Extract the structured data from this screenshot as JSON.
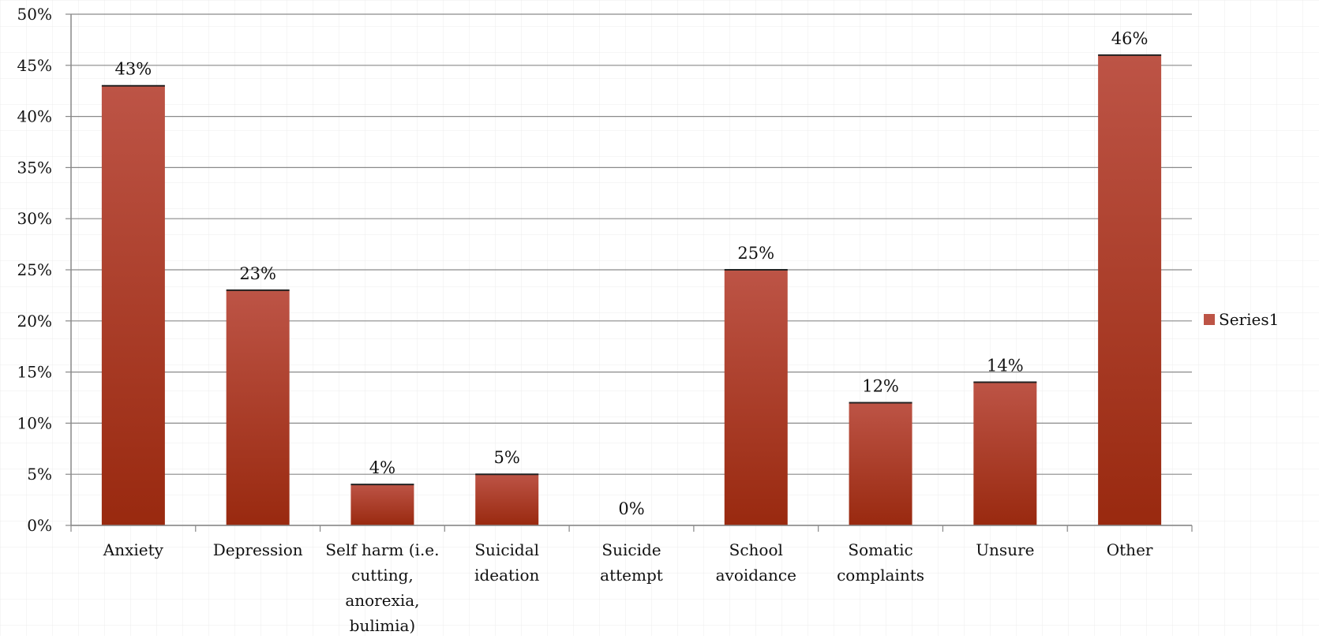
{
  "chart_data": {
    "type": "bar",
    "categories": [
      "Anxiety",
      "Depression",
      "Self harm (i.e. cutting, anorexia, bulimia)",
      "Suicidal ideation",
      "Suicide attempt",
      "School avoidance",
      "Somatic complaints",
      "Unsure",
      "Other"
    ],
    "category_lines": [
      [
        "Anxiety"
      ],
      [
        "Depression"
      ],
      [
        "Self harm (i.e.",
        "cutting,",
        "anorexia,",
        "bulimia)"
      ],
      [
        "Suicidal",
        "ideation"
      ],
      [
        "Suicide",
        "attempt"
      ],
      [
        "School",
        "avoidance"
      ],
      [
        "Somatic",
        "complaints"
      ],
      [
        "Unsure"
      ],
      [
        "Other"
      ]
    ],
    "series": [
      {
        "name": "Series1",
        "values": [
          43,
          23,
          4,
          5,
          0,
          25,
          12,
          14,
          46
        ],
        "data_labels": [
          "43%",
          "23%",
          "4%",
          "5%",
          "0%",
          "25%",
          "12%",
          "14%",
          "46%"
        ]
      }
    ],
    "y_ticks": [
      "0%",
      "5%",
      "10%",
      "15%",
      "20%",
      "25%",
      "30%",
      "35%",
      "40%",
      "45%",
      "50%"
    ],
    "ylim": [
      0,
      50
    ],
    "y_step": 5,
    "title": "",
    "xlabel": "",
    "ylabel": "",
    "grid": true,
    "legend_position": "right",
    "colors": {
      "bar_top": "#bd5446",
      "bar_bottom": "#99290f",
      "grid": "#8a8a8a",
      "axis": "#888888",
      "background_grid": "#ececec"
    }
  }
}
